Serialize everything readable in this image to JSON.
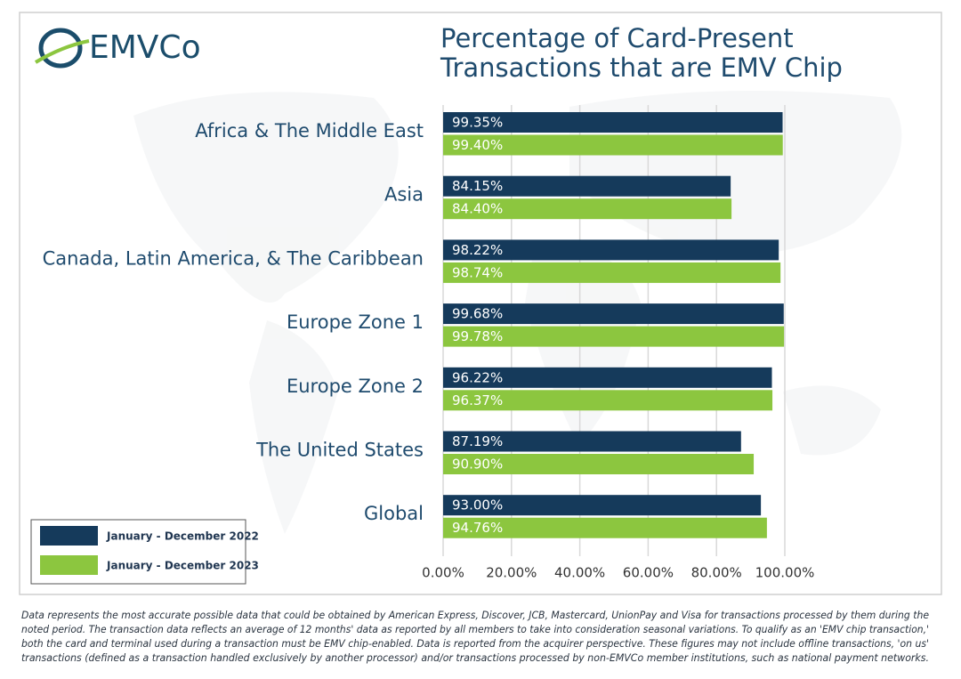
{
  "logo": "EMVCo",
  "chart_data": {
    "type": "hbar",
    "title": [
      "Percentage of Card-Present",
      "Transactions that are EMV Chip"
    ],
    "categories": [
      "Africa & The Middle East",
      "Asia",
      "Canada, Latin America, & The Caribbean",
      "Europe Zone 1",
      "Europe Zone 2",
      "The United States",
      "Global"
    ],
    "series": [
      {
        "name": "January - December 2022",
        "color": "#153a5b",
        "values": [
          99.35,
          84.15,
          98.22,
          99.68,
          96.22,
          87.19,
          93.0
        ],
        "value_labels": [
          "99.35%",
          "84.15%",
          "98.22%",
          "99.68%",
          "96.22%",
          "87.19%",
          "93.00%"
        ]
      },
      {
        "name": "January - December 2023",
        "color": "#8cc63f",
        "values": [
          99.4,
          84.4,
          98.74,
          99.78,
          96.37,
          90.9,
          94.76
        ],
        "value_labels": [
          "99.40%",
          "84.40%",
          "98.74%",
          "99.78%",
          "96.37%",
          "90.90%",
          "94.76%"
        ]
      }
    ],
    "xlim": [
      0,
      100
    ],
    "xticks": [
      {
        "value": 0,
        "label": "0.00%"
      },
      {
        "value": 20,
        "label": "20.00%"
      },
      {
        "value": 40,
        "label": "40.00%"
      },
      {
        "value": 60,
        "label": "60.00%"
      },
      {
        "value": 80,
        "label": "80.00%"
      },
      {
        "value": 100,
        "label": "100.00%"
      }
    ],
    "grid": true,
    "legend": "lower left",
    "footnote": [
      "Data represents the most accurate possible data that could be obtained by American Express, Discover, JCB, Mastercard, UnionPay and Visa for transactions processed by them during the",
      "noted period. The transaction data reflects an average of 12 months' data as reported by all members to take into consideration seasonal variations. To qualify as an 'EMV chip transaction,'",
      "both the card and terminal used during a transaction must be EMV chip-enabled. Data is reported from the acquirer perspective. These figures may not include offline transactions, 'on us'",
      "transactions (defined as a transaction handled exclusively by another processor) and/or transactions processed by non-EMVCo member institutions, such as national payment networks."
    ]
  }
}
